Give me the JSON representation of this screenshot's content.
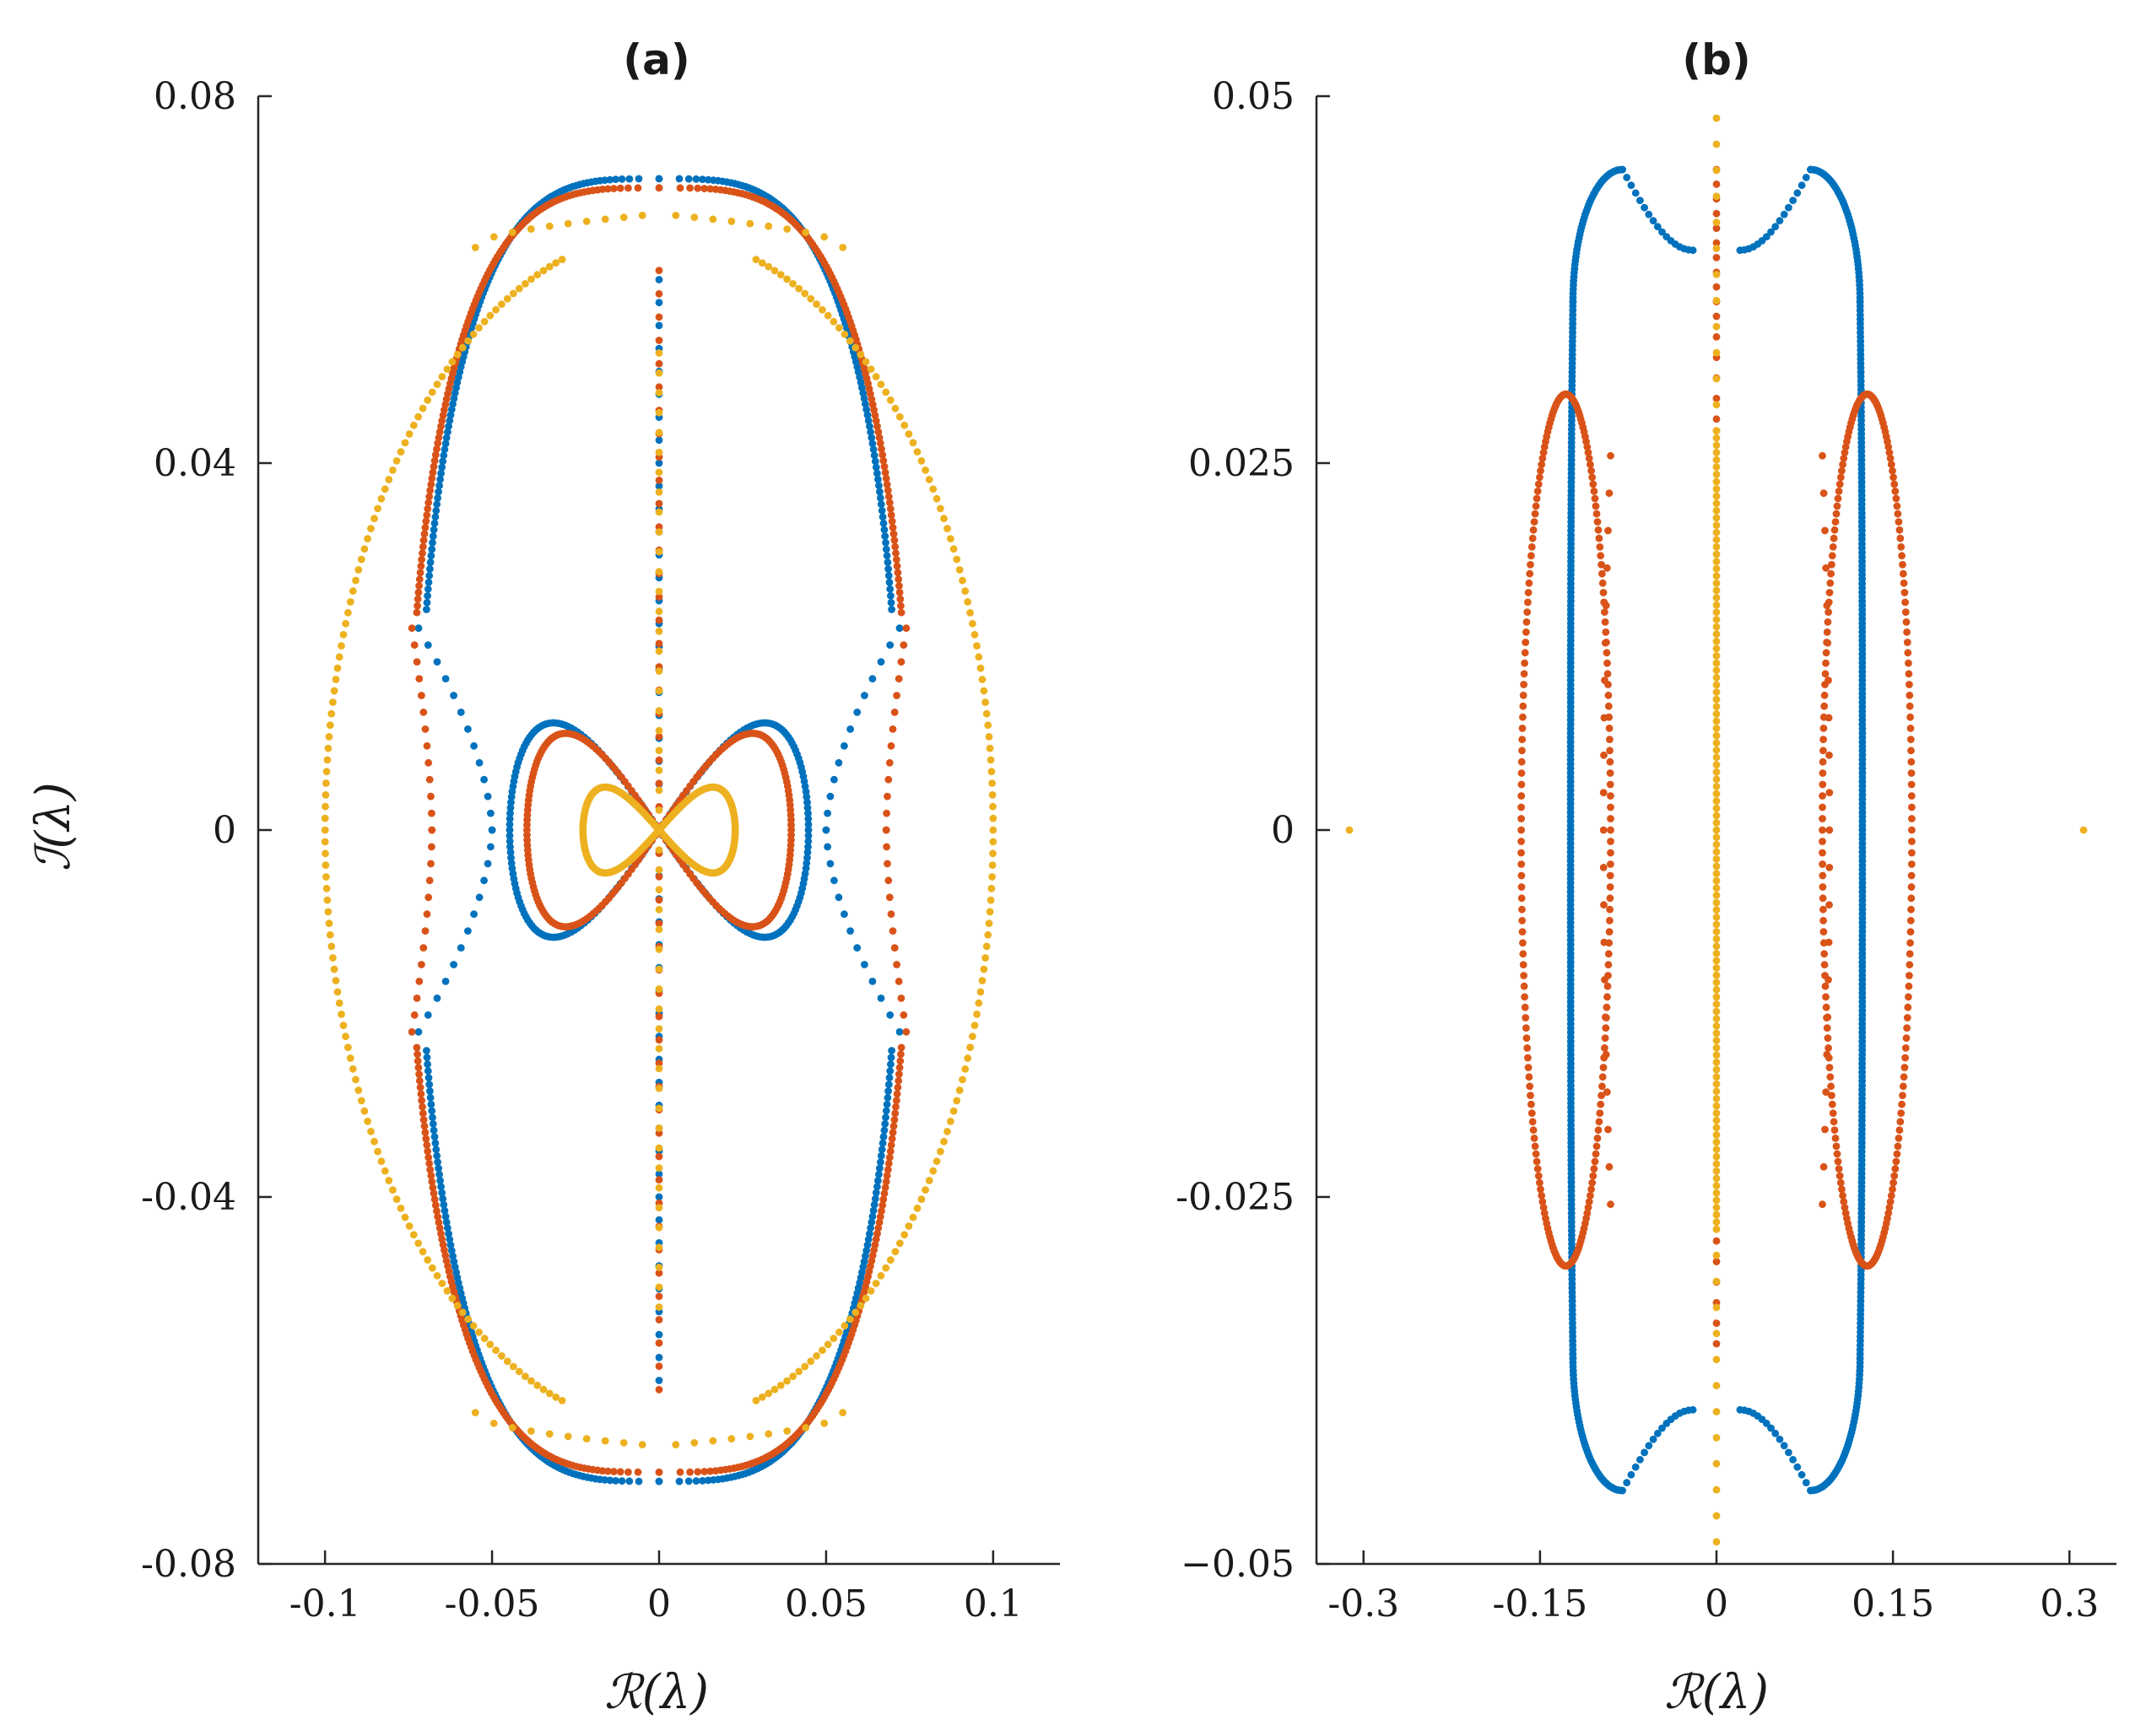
{
  "colors": {
    "blue": "#0072BD",
    "red": "#D95319",
    "yellow": "#EDB120",
    "axis": "#262626"
  },
  "chart_data": [
    {
      "type": "scatter",
      "panel": "a",
      "title": "(a)",
      "xlabel": "ℛ(λ)",
      "ylabel": "ℐ(λ)",
      "xlim": [
        -0.12,
        0.12
      ],
      "ylim": [
        -0.08,
        0.08
      ],
      "xticks": [
        -0.1,
        -0.05,
        0,
        0.05,
        0.1
      ],
      "xtick_labels": [
        "-0.1",
        "-0.05",
        "0",
        "0.05",
        "0.1"
      ],
      "yticks": [
        -0.08,
        -0.04,
        0,
        0.04,
        0.08
      ],
      "ytick_labels": [
        "-0.08",
        "-0.04",
        "0",
        "0.04",
        "0.08"
      ],
      "series": [
        {
          "name": "blue",
          "color": "#0072BD",
          "outer_contour": {
            "a": 0.072,
            "b": 0.071,
            "waist": 0.1
          },
          "dotted_link": {
            "x0": 0.072,
            "x1": 0.05,
            "ymax": 0.022
          },
          "figure_eight": {
            "A": 0.052,
            "B": 0.0205
          },
          "imag_axis_points": {
            "from": -0.06,
            "to": 0.06
          }
        },
        {
          "name": "red",
          "color": "#D95319",
          "outer_contour": {
            "a": 0.075,
            "b": 0.07,
            "waist": 0.07
          },
          "dotted_link": {
            "x0": 0.074,
            "x1": 0.068,
            "ymax": 0.022
          },
          "figure_eight": {
            "A": 0.046,
            "B": 0.0185
          },
          "imag_axis_points": {
            "from": -0.061,
            "to": 0.061
          }
        },
        {
          "name": "yellow",
          "color": "#EDB120",
          "outer_contour": {
            "a": 0.1,
            "b": 0.065
          },
          "dotted_arc": {
            "x0": 0.055,
            "x1": 0.005,
            "y0": 0.0635,
            "y1": 0.067
          },
          "figure_eight": {
            "A": 0.0265,
            "B": 0.0082
          },
          "imag_axis_points": {
            "from": -0.052,
            "to": 0.052
          }
        }
      ]
    },
    {
      "type": "scatter",
      "panel": "b",
      "title": "(b)",
      "xlabel": "ℛ(λ)",
      "ylabel": "",
      "xlim": [
        -0.34,
        0.34
      ],
      "ylim": [
        -0.05,
        0.05
      ],
      "xticks": [
        -0.3,
        -0.15,
        0,
        0.15,
        0.3
      ],
      "xtick_labels": [
        "-0.3",
        "-0.15",
        "0",
        "0.15",
        "0.3"
      ],
      "yticks": [
        -0.05,
        -0.025,
        0,
        0.025,
        0.05
      ],
      "ytick_labels": [
        "−0.05",
        "-0.025",
        "0",
        "0.025",
        "0.05"
      ],
      "series": [
        {
          "name": "blue",
          "color": "#0072BD",
          "outer_contour": {
            "xmax": 0.124,
            "peak_x": 0.08,
            "peak_y": 0.045,
            "notch_y": 0.0395,
            "notch_x": 0.02
          }
        },
        {
          "name": "red",
          "color": "#D95319",
          "loop": {
            "center_x": 0.128,
            "half_width": 0.038,
            "half_height": 0.0297
          },
          "dotted_line": {
            "x": 0.096,
            "from": -0.0255,
            "to": 0.0255
          },
          "imag_axis_points": {
            "from": -0.035,
            "to": 0.045
          }
        },
        {
          "name": "yellow",
          "color": "#EDB120",
          "imag_axis_band": {
            "from": -0.0272,
            "to": 0.0272
          },
          "imag_axis_points": {
            "from": -0.0485,
            "to": 0.0485
          },
          "real_axis_points": [
            -0.312,
            0.312
          ]
        }
      ]
    }
  ]
}
